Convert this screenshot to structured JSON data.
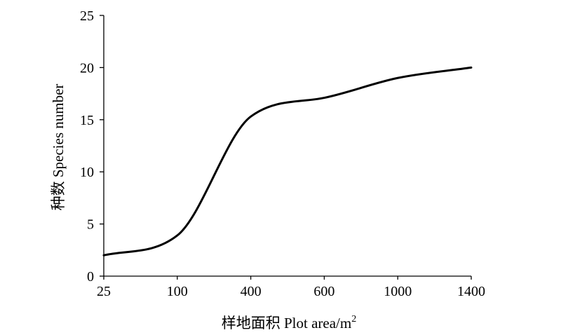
{
  "chart_data": {
    "type": "line",
    "title": "",
    "xlabel": "样地面积 Plot area/m",
    "xlabel_superscript": "2",
    "ylabel": "种数 Species number",
    "x_categories": [
      "25",
      "100",
      "400",
      "600",
      "1000",
      "1400"
    ],
    "ylim": [
      0,
      25
    ],
    "yticks": [
      0,
      5,
      10,
      15,
      20,
      25
    ],
    "grid": false,
    "legend": "none",
    "line_color": "#000000",
    "series": [
      {
        "points": [
          {
            "x": "25",
            "y": 2.0
          },
          {
            "x": "100",
            "y": 3.9
          },
          {
            "x": "400",
            "y": 15.3
          },
          {
            "x": "600",
            "y": 17.1
          },
          {
            "x": "1000",
            "y": 19.0
          },
          {
            "x": "1400",
            "y": 20.0
          }
        ]
      }
    ]
  }
}
